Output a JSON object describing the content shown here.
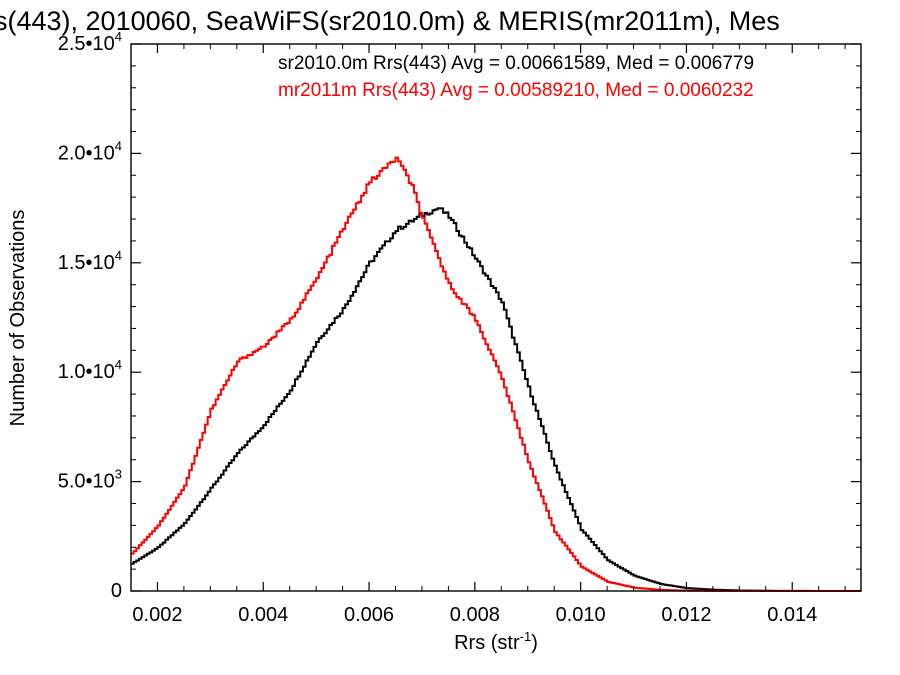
{
  "chart_data": {
    "type": "line",
    "style": "histogram-step",
    "title": "s(443), 2010060, SeaWiFS(sr2010.0m) & MERIS(mr2011m), Mes",
    "xlabel": "Rrs (str",
    "xlabel_sup": "-1",
    "xlabel_close": ")",
    "ylabel": "Number of Observations",
    "xlim": [
      0.0015,
      0.0153
    ],
    "ylim": [
      0,
      25000
    ],
    "x_ticks": [
      {
        "value": 0.002,
        "label": "0.002"
      },
      {
        "value": 0.004,
        "label": "0.004"
      },
      {
        "value": 0.006,
        "label": "0.006"
      },
      {
        "value": 0.008,
        "label": "0.008"
      },
      {
        "value": 0.01,
        "label": "0.010"
      },
      {
        "value": 0.012,
        "label": "0.012"
      },
      {
        "value": 0.014,
        "label": "0.014"
      }
    ],
    "y_ticks": [
      {
        "value": 0,
        "mant": "0",
        "exp": ""
      },
      {
        "value": 5000,
        "mant": "5.0•10",
        "exp": "3"
      },
      {
        "value": 10000,
        "mant": "1.0•10",
        "exp": "4"
      },
      {
        "value": 15000,
        "mant": "1.5•10",
        "exp": "4"
      },
      {
        "value": 20000,
        "mant": "2.0•10",
        "exp": "4"
      },
      {
        "value": 25000,
        "mant": "2.5•10",
        "exp": "4"
      }
    ],
    "legend_position": "top-right",
    "series": [
      {
        "name": "sr2010.0m",
        "color": "#000000",
        "stats_label": "sr2010.0m Rrs(443) Avg = 0.00661589, Med = 0.006779",
        "points": [
          [
            0.0015,
            1250
          ],
          [
            0.002,
            2000
          ],
          [
            0.0025,
            3100
          ],
          [
            0.003,
            4700
          ],
          [
            0.0035,
            6300
          ],
          [
            0.004,
            7600
          ],
          [
            0.0045,
            9200
          ],
          [
            0.005,
            11400
          ],
          [
            0.0055,
            12900
          ],
          [
            0.006,
            15000
          ],
          [
            0.0065,
            16500
          ],
          [
            0.007,
            17200
          ],
          [
            0.0073,
            17500
          ],
          [
            0.0075,
            17100
          ],
          [
            0.008,
            15200
          ],
          [
            0.0085,
            13200
          ],
          [
            0.009,
            9300
          ],
          [
            0.0095,
            5700
          ],
          [
            0.01,
            2800
          ],
          [
            0.0105,
            1400
          ],
          [
            0.011,
            700
          ],
          [
            0.0115,
            320
          ],
          [
            0.012,
            130
          ],
          [
            0.0125,
            60
          ],
          [
            0.013,
            25
          ],
          [
            0.0135,
            10
          ],
          [
            0.014,
            4
          ],
          [
            0.0153,
            0
          ]
        ]
      },
      {
        "name": "mr2011m",
        "color": "#ff0000",
        "stats_label": "mr2011m Rrs(443) Avg = 0.00589210, Med = 0.0060232",
        "points": [
          [
            0.0015,
            1700
          ],
          [
            0.002,
            3000
          ],
          [
            0.0025,
            4800
          ],
          [
            0.003,
            8300
          ],
          [
            0.0035,
            10500
          ],
          [
            0.004,
            11200
          ],
          [
            0.0045,
            12400
          ],
          [
            0.005,
            14300
          ],
          [
            0.0055,
            16600
          ],
          [
            0.006,
            18700
          ],
          [
            0.0065,
            19800
          ],
          [
            0.0068,
            18500
          ],
          [
            0.007,
            17000
          ],
          [
            0.0075,
            14000
          ],
          [
            0.008,
            12400
          ],
          [
            0.0085,
            9700
          ],
          [
            0.009,
            5900
          ],
          [
            0.0095,
            2700
          ],
          [
            0.01,
            1100
          ],
          [
            0.0105,
            420
          ],
          [
            0.011,
            150
          ],
          [
            0.0115,
            50
          ],
          [
            0.012,
            15
          ],
          [
            0.0125,
            5
          ],
          [
            0.0153,
            0
          ]
        ]
      }
    ]
  }
}
